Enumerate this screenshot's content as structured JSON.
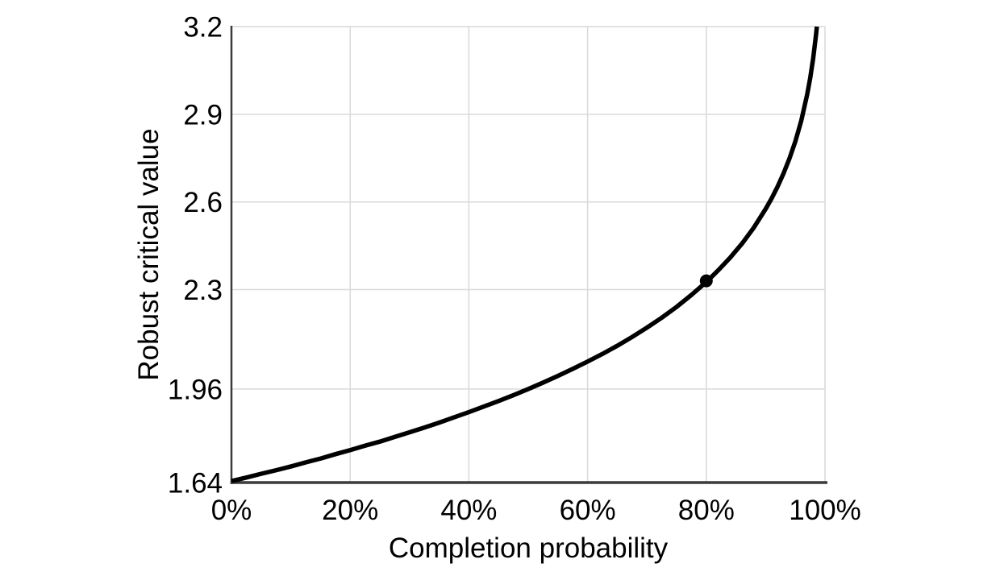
{
  "chart_data": {
    "type": "line",
    "title": "",
    "xlabel": "Completion probability",
    "ylabel": "Robust critical value",
    "xlim": [
      0,
      1
    ],
    "ylim": [
      1.64,
      3.2
    ],
    "grid": true,
    "legend": null,
    "x_ticks": [
      {
        "value": 0.0,
        "label": "0%"
      },
      {
        "value": 0.2,
        "label": "20%"
      },
      {
        "value": 0.4,
        "label": "40%"
      },
      {
        "value": 0.6,
        "label": "60%"
      },
      {
        "value": 0.8,
        "label": "80%"
      },
      {
        "value": 1.0,
        "label": "100%"
      }
    ],
    "y_ticks": [
      {
        "value": 1.64,
        "label": "1.64"
      },
      {
        "value": 1.96,
        "label": "1.96"
      },
      {
        "value": 2.3,
        "label": "2.3"
      },
      {
        "value": 2.6,
        "label": "2.6"
      },
      {
        "value": 2.9,
        "label": "2.9"
      },
      {
        "value": 3.2,
        "label": "3.2"
      }
    ],
    "series": [
      {
        "name": "robust-critical-value-curve",
        "color": "#000000",
        "points": [
          [
            0.0,
            1.645
          ],
          [
            0.025,
            1.657
          ],
          [
            0.05,
            1.67
          ],
          [
            0.075,
            1.682
          ],
          [
            0.1,
            1.695
          ],
          [
            0.125,
            1.709
          ],
          [
            0.15,
            1.722
          ],
          [
            0.175,
            1.737
          ],
          [
            0.2,
            1.751
          ],
          [
            0.225,
            1.766
          ],
          [
            0.25,
            1.78
          ],
          [
            0.275,
            1.796
          ],
          [
            0.3,
            1.812
          ],
          [
            0.325,
            1.828
          ],
          [
            0.35,
            1.845
          ],
          [
            0.375,
            1.863
          ],
          [
            0.4,
            1.881
          ],
          [
            0.425,
            1.9
          ],
          [
            0.45,
            1.919
          ],
          [
            0.475,
            1.939
          ],
          [
            0.5,
            1.96
          ],
          [
            0.525,
            1.982
          ],
          [
            0.55,
            2.005
          ],
          [
            0.575,
            2.029
          ],
          [
            0.6,
            2.054
          ],
          [
            0.625,
            2.08
          ],
          [
            0.65,
            2.108
          ],
          [
            0.675,
            2.138
          ],
          [
            0.7,
            2.17
          ],
          [
            0.725,
            2.204
          ],
          [
            0.75,
            2.241
          ],
          [
            0.775,
            2.282
          ],
          [
            0.8,
            2.326
          ],
          [
            0.82,
            2.366
          ],
          [
            0.84,
            2.409
          ],
          [
            0.86,
            2.457
          ],
          [
            0.88,
            2.512
          ],
          [
            0.9,
            2.576
          ],
          [
            0.91,
            2.612
          ],
          [
            0.92,
            2.652
          ],
          [
            0.93,
            2.697
          ],
          [
            0.94,
            2.748
          ],
          [
            0.95,
            2.807
          ],
          [
            0.96,
            2.878
          ],
          [
            0.97,
            2.968
          ],
          [
            0.975,
            3.023
          ],
          [
            0.98,
            3.09
          ],
          [
            0.985,
            3.174
          ],
          [
            0.9863,
            3.2
          ]
        ]
      }
    ],
    "highlight_point": {
      "x": 0.8,
      "y": 2.33
    },
    "colors": {
      "curve": "#000000",
      "marker": "#000000",
      "grid": "#d9d9d9",
      "axis": "#3b3b3b",
      "text": "#000000",
      "background": "#ffffff"
    }
  }
}
